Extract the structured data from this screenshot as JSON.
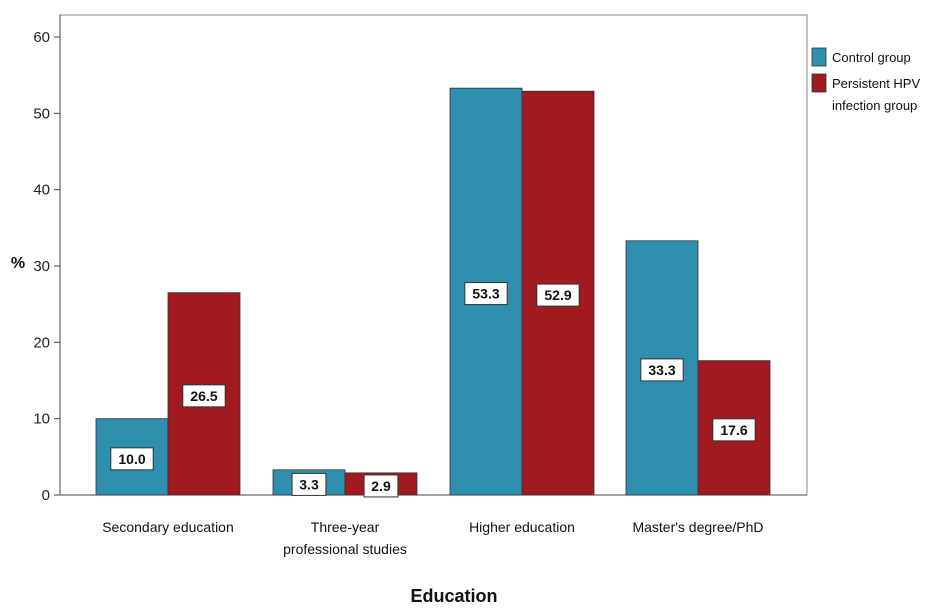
{
  "chart_data": {
    "type": "bar",
    "xlabel": "Education",
    "ylabel": "%",
    "ylim": [
      0,
      60
    ],
    "yticks": [
      0,
      10,
      20,
      30,
      40,
      50,
      60
    ],
    "categories": [
      [
        "Secondary education"
      ],
      [
        "Three-year",
        "professional studies"
      ],
      [
        "Higher education"
      ],
      [
        "Master's degree/PhD"
      ]
    ],
    "series": [
      {
        "name": "Control group",
        "color": "#2e8fae",
        "values": [
          10.0,
          3.3,
          53.3,
          33.3
        ]
      },
      {
        "name": "Persistent HPV infection group",
        "color": "#a11a20",
        "values": [
          26.5,
          2.9,
          52.9,
          17.6
        ]
      }
    ],
    "data_labels": [
      [
        "10.0",
        "3.3",
        "53.3",
        "33.3"
      ],
      [
        "26.5",
        "2.9",
        "52.9",
        "17.6"
      ]
    ],
    "legend": {
      "placement": "right",
      "entries": [
        [
          "Control group"
        ],
        [
          "Persistent HPV",
          "infection group"
        ]
      ]
    },
    "grid": false
  }
}
